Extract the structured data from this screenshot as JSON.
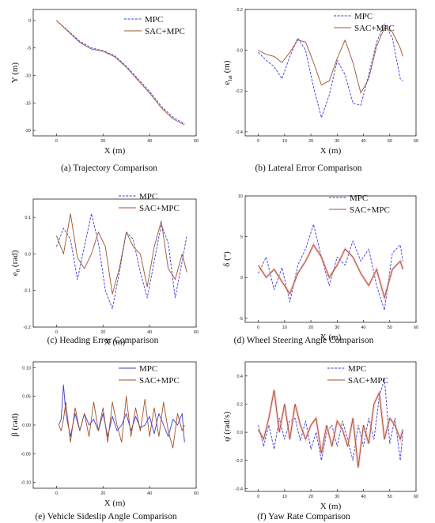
{
  "colors": {
    "mpc": "#3b3bd6",
    "sac_mpc": "#a0522d",
    "band": "#f2a0a8",
    "axis": "#222222"
  },
  "chart_data": [
    {
      "type": "line",
      "caption": "(a) Trajectory Comparison",
      "xlabel": "X (m)",
      "ylabel": "Y (m)",
      "ylabel_sub": "",
      "xlim": [
        -10,
        60
      ],
      "ylim": [
        -21,
        2
      ],
      "xticks": [
        0,
        20,
        40,
        60
      ],
      "xtick_labels": [
        "0",
        "20",
        "40",
        "60"
      ],
      "yticks": [
        0,
        -5,
        -10,
        -15,
        -20
      ],
      "ytick_labels": [
        "0",
        "-5",
        "-10",
        "-15",
        "-20"
      ],
      "legend": [
        "MPC",
        "SAC+MPC"
      ],
      "legend_position": "top-right",
      "series": [
        {
          "name": "MPC",
          "style": "dashed",
          "x": [
            0,
            5,
            10,
            15,
            20,
            25,
            30,
            35,
            40,
            45,
            50,
            55
          ],
          "y": [
            0,
            -1.9,
            -3.8,
            -5.0,
            -5.5,
            -6.4,
            -8.3,
            -10.6,
            -12.9,
            -15.6,
            -17.6,
            -18.8
          ]
        },
        {
          "name": "SAC+MPC",
          "style": "solid",
          "x": [
            0,
            5,
            10,
            15,
            20,
            25,
            30,
            35,
            40,
            45,
            50,
            55
          ],
          "y": [
            0,
            -2.0,
            -4.0,
            -5.2,
            -5.6,
            -6.6,
            -8.5,
            -10.9,
            -13.2,
            -15.9,
            -17.9,
            -19.0
          ]
        }
      ]
    },
    {
      "type": "line",
      "caption": "(b) Lateral Error Comparison",
      "xlabel": "X (m)",
      "ylabel": "e",
      "ylabel_sub": "lat",
      "ylabel_unit": " (m)",
      "xlim": [
        -5,
        60
      ],
      "ylim": [
        -0.42,
        0.2
      ],
      "xticks": [
        0,
        10,
        20,
        30,
        40,
        50,
        60
      ],
      "xtick_labels": [
        "0",
        "10",
        "20",
        "30",
        "40",
        "50",
        "60"
      ],
      "yticks": [
        0.2,
        0.0,
        -0.2,
        -0.4
      ],
      "ytick_labels": [
        "0.2",
        "0.0",
        "-0.2",
        "-0.4"
      ],
      "legend": [
        "MPC",
        "SAC+MPC"
      ],
      "legend_position": "top-right",
      "series": [
        {
          "name": "MPC",
          "style": "dashed",
          "x": [
            0,
            3,
            6,
            9,
            12,
            15,
            18,
            21,
            24,
            27,
            30,
            33,
            36,
            39,
            42,
            45,
            48,
            51,
            54,
            55
          ],
          "y": [
            -0.01,
            -0.05,
            -0.08,
            -0.14,
            -0.03,
            0.06,
            0.0,
            -0.18,
            -0.33,
            -0.22,
            -0.05,
            -0.12,
            -0.26,
            -0.27,
            -0.12,
            0.04,
            0.13,
            0.06,
            -0.14,
            -0.15
          ]
        },
        {
          "name": "SAC+MPC",
          "style": "solid",
          "x": [
            0,
            3,
            6,
            9,
            12,
            15,
            18,
            21,
            24,
            27,
            30,
            33,
            36,
            39,
            42,
            45,
            48,
            51,
            54,
            55
          ],
          "y": [
            0.0,
            -0.02,
            -0.03,
            -0.06,
            -0.01,
            0.05,
            0.04,
            -0.06,
            -0.17,
            -0.15,
            -0.04,
            0.05,
            -0.06,
            -0.21,
            -0.14,
            0.02,
            0.11,
            0.09,
            0.01,
            -0.03
          ]
        }
      ]
    },
    {
      "type": "line",
      "caption": "(c) Heading Error Comparison",
      "xlabel": "X (m)",
      "ylabel": "e",
      "ylabel_sub": "θ",
      "ylabel_unit": " (rad)",
      "xlim": [
        -10,
        60
      ],
      "ylim": [
        -0.2,
        0.15
      ],
      "xticks": [
        0,
        20,
        40,
        60
      ],
      "xtick_labels": [
        "0",
        "20",
        "40",
        "60"
      ],
      "yticks": [
        0.1,
        0.0,
        -0.1,
        -0.2
      ],
      "ytick_labels": [
        "0.1",
        "0.0",
        "-0.1",
        "-0.2"
      ],
      "legend": [
        "MPC",
        "SAC+MPC"
      ],
      "legend_position": "top-right",
      "series": [
        {
          "name": "MPC",
          "style": "dashed",
          "x": [
            0,
            3,
            6,
            9,
            12,
            15,
            18,
            21,
            24,
            27,
            30,
            33,
            36,
            39,
            42,
            45,
            48,
            51,
            54,
            56
          ],
          "y": [
            0.02,
            0.07,
            0.04,
            -0.07,
            0.02,
            0.11,
            0.03,
            -0.1,
            -0.15,
            -0.05,
            0.06,
            0.04,
            -0.05,
            -0.12,
            -0.02,
            0.08,
            0.03,
            -0.12,
            -0.02,
            0.05
          ]
        },
        {
          "name": "SAC+MPC",
          "style": "solid",
          "x": [
            0,
            3,
            6,
            9,
            12,
            15,
            18,
            21,
            24,
            27,
            30,
            33,
            36,
            39,
            42,
            45,
            48,
            51,
            54,
            56
          ],
          "y": [
            0.05,
            0.0,
            0.11,
            -0.01,
            -0.04,
            0.0,
            0.06,
            0.02,
            -0.11,
            -0.04,
            0.06,
            0.02,
            0.0,
            -0.09,
            0.02,
            0.09,
            -0.04,
            -0.07,
            0.0,
            -0.05
          ]
        }
      ]
    },
    {
      "type": "line",
      "caption": "(d) Wheel Steering Angle Comparison",
      "xlabel": "X (m)",
      "ylabel": "δ (°)",
      "ylabel_sub": "",
      "xlim": [
        -5,
        60
      ],
      "ylim": [
        -5.5,
        10
      ],
      "xticks": [
        0,
        10,
        20,
        30,
        40,
        50,
        60
      ],
      "xtick_labels": [
        "0",
        "10",
        "20",
        "30",
        "40",
        "50",
        "60"
      ],
      "yticks": [
        10,
        5,
        0,
        -5
      ],
      "ytick_labels": [
        "10",
        "5",
        "0",
        "-5"
      ],
      "legend": [
        "MPC",
        "SAC+MPC"
      ],
      "legend_position": "top-right",
      "series": [
        {
          "name": "MPC",
          "style": "dashed",
          "x": [
            0,
            3,
            6,
            9,
            12,
            15,
            18,
            21,
            24,
            27,
            30,
            33,
            36,
            39,
            42,
            45,
            48,
            51,
            54,
            55
          ],
          "y": [
            0.5,
            2.5,
            -1.5,
            1.2,
            -3.0,
            1.5,
            3.5,
            6.5,
            2.5,
            -1.0,
            2.5,
            1.5,
            4.5,
            2.0,
            3.5,
            -1.0,
            -4.0,
            3.0,
            4.0,
            2.0
          ]
        },
        {
          "name": "SAC+MPC",
          "style": "solid",
          "x": [
            0,
            3,
            6,
            9,
            12,
            15,
            18,
            21,
            24,
            27,
            30,
            33,
            36,
            39,
            42,
            45,
            48,
            51,
            54,
            55
          ],
          "y": [
            1.5,
            0.0,
            1.0,
            -0.5,
            -2.0,
            0.5,
            2.0,
            4.0,
            2.5,
            0.0,
            1.5,
            3.5,
            2.5,
            0.5,
            -1.0,
            1.0,
            -2.5,
            1.0,
            2.0,
            1.0
          ]
        }
      ]
    },
    {
      "type": "line",
      "caption": "(e) Vehicle Sideslip Angle Comparison",
      "xlabel": "X (m)",
      "ylabel": "β (rad)",
      "ylabel_sub": "",
      "xlim": [
        -10,
        60
      ],
      "ylim": [
        -0.11,
        0.11
      ],
      "xticks": [
        0,
        20,
        40,
        60
      ],
      "xtick_labels": [
        "0",
        "20",
        "40",
        "60"
      ],
      "yticks": [
        0.1,
        0.05,
        0.0,
        -0.05,
        -0.1
      ],
      "ytick_labels": [
        "0.10",
        "0.05",
        "0.00",
        "-0.05",
        "-0.10"
      ],
      "legend": [
        "MPC",
        "SAC+MPC"
      ],
      "legend_position": "top-right",
      "series": [
        {
          "name": "MPC",
          "style": "solid",
          "x": [
            1,
            2,
            3,
            4,
            6,
            8,
            10,
            12,
            14,
            16,
            18,
            20,
            22,
            24,
            26,
            28,
            30,
            32,
            34,
            36,
            38,
            40,
            42,
            44,
            46,
            48,
            50,
            52,
            54,
            55
          ],
          "y": [
            0.0,
            0.01,
            0.07,
            0.02,
            -0.02,
            0.02,
            -0.01,
            0.02,
            0.0,
            0.01,
            -0.01,
            0.02,
            -0.02,
            0.015,
            -0.01,
            0.0,
            0.02,
            -0.01,
            0.015,
            -0.005,
            0.0,
            0.015,
            -0.015,
            0.02,
            0.0,
            -0.02,
            0.01,
            0.0,
            0.02,
            -0.03
          ]
        },
        {
          "name": "SAC+MPC",
          "style": "solid",
          "x": [
            1,
            2,
            3,
            4,
            6,
            8,
            10,
            12,
            14,
            16,
            18,
            20,
            22,
            24,
            26,
            28,
            30,
            32,
            34,
            36,
            38,
            40,
            42,
            44,
            46,
            48,
            50,
            52,
            54,
            55
          ],
          "y": [
            0.0,
            -0.01,
            0.01,
            0.04,
            -0.03,
            0.03,
            -0.01,
            0.02,
            -0.02,
            0.04,
            -0.01,
            0.03,
            -0.03,
            0.04,
            0.0,
            -0.03,
            0.05,
            -0.02,
            0.03,
            -0.01,
            0.045,
            -0.02,
            0.03,
            -0.02,
            0.04,
            -0.01,
            -0.04,
            0.02,
            -0.01,
            0.0
          ]
        }
      ]
    },
    {
      "type": "line",
      "caption": "(f) Yaw Rate Comparison",
      "xlabel": "X (m)",
      "ylabel": "φ̇ (rad/s)",
      "ylabel_sub": "",
      "xlim": [
        -5,
        60
      ],
      "ylim": [
        -0.42,
        0.5
      ],
      "xticks": [
        0,
        10,
        20,
        30,
        40,
        50,
        60
      ],
      "xtick_labels": [
        "0",
        "10",
        "20",
        "30",
        "40",
        "50",
        "60"
      ],
      "yticks": [
        0.4,
        0.2,
        0.0,
        -0.2,
        -0.4
      ],
      "ytick_labels": [
        "0.4",
        "0.2",
        "0.0",
        "-0.2",
        "-0.4"
      ],
      "legend": [
        "MPC",
        "SAC+MPC"
      ],
      "legend_position": "top-right",
      "series": [
        {
          "name": "MPC",
          "style": "dashed",
          "x": [
            0,
            2,
            4,
            6,
            8,
            10,
            12,
            14,
            16,
            18,
            20,
            22,
            24,
            26,
            28,
            30,
            32,
            34,
            36,
            38,
            40,
            42,
            44,
            46,
            48,
            50,
            52,
            54,
            55
          ],
          "y": [
            0.05,
            -0.1,
            0.05,
            -0.12,
            0.1,
            -0.05,
            0.08,
            0.1,
            -0.06,
            0.08,
            -0.12,
            0.0,
            -0.2,
            0.0,
            0.05,
            -0.1,
            0.08,
            -0.05,
            -0.2,
            0.05,
            -0.1,
            0.1,
            -0.05,
            0.25,
            0.38,
            -0.08,
            0.1,
            -0.2,
            0.0
          ]
        },
        {
          "name": "SAC+MPC",
          "style": "solid",
          "x": [
            0,
            2,
            4,
            6,
            8,
            10,
            12,
            14,
            16,
            18,
            20,
            22,
            24,
            26,
            28,
            30,
            32,
            34,
            36,
            38,
            40,
            42,
            44,
            46,
            48,
            50,
            52,
            54,
            55
          ],
          "y": [
            0.02,
            -0.05,
            0.1,
            0.3,
            0.0,
            0.2,
            -0.05,
            0.2,
            0.05,
            -0.05,
            0.05,
            0.1,
            -0.15,
            0.05,
            -0.1,
            0.08,
            0.02,
            -0.1,
            0.1,
            -0.25,
            0.05,
            -0.08,
            0.2,
            0.28,
            -0.05,
            0.1,
            0.05,
            -0.05,
            0.02
          ]
        }
      ]
    }
  ]
}
